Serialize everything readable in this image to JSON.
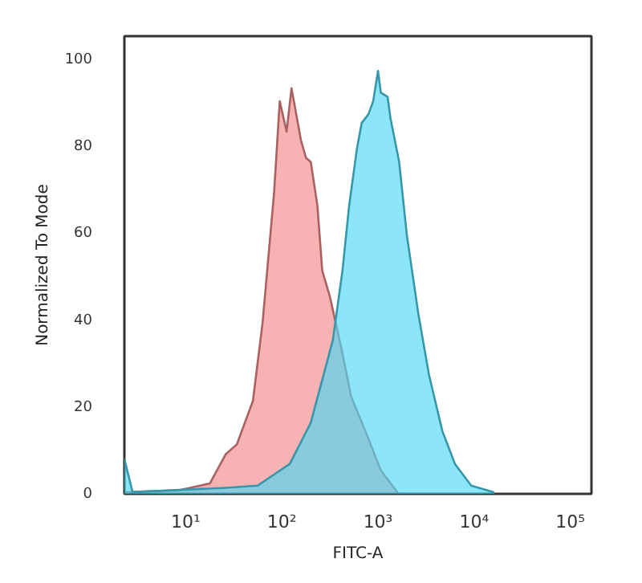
{
  "chart_data": {
    "type": "area",
    "xlabel": "FITC-A",
    "ylabel": "Normalized To Mode",
    "log": "x",
    "grid": false,
    "xlim": [
      2.3,
      166000
    ],
    "ylim": [
      -0.4,
      105
    ],
    "xticks": [
      {
        "value": 10,
        "label": "10¹"
      },
      {
        "value": 100,
        "label": "10²"
      },
      {
        "value": 1000,
        "label": "10³"
      },
      {
        "value": 10000,
        "label": "10⁴"
      },
      {
        "value": 100000,
        "label": "10⁵"
      }
    ],
    "yticks": [
      0,
      20,
      40,
      60,
      80,
      100
    ],
    "series": [
      {
        "color": "#f28b8b",
        "x": [
          2.4,
          8.3,
          17.8,
          26,
          34,
          50,
          63,
          83,
          95,
          112,
          126,
          158,
          178,
          200,
          234,
          263,
          316,
          417,
          525,
          741,
          1070,
          1585
        ],
        "values": [
          0,
          0.4,
          2,
          8.7,
          11,
          21,
          39,
          69,
          90,
          83,
          93,
          81,
          77,
          76,
          66,
          51,
          45,
          33,
          22,
          14,
          5,
          0
        ]
      },
      {
        "color": "#4fd8f4",
        "x": [
          2.3,
          2.8,
          26,
          56,
          121,
          200,
          339,
          427,
          501,
          603,
          676,
          794,
          891,
          1000,
          1070,
          1259,
          1350,
          1660,
          2000,
          2630,
          3390,
          4680,
          6310,
          9330,
          15800
        ],
        "values": [
          7.6,
          0,
          1,
          1.5,
          6.5,
          16,
          35,
          51,
          66,
          79,
          85,
          87,
          90,
          97,
          92,
          91,
          86,
          76,
          59,
          41,
          27,
          14,
          6.5,
          1.5,
          0
        ]
      }
    ]
  }
}
